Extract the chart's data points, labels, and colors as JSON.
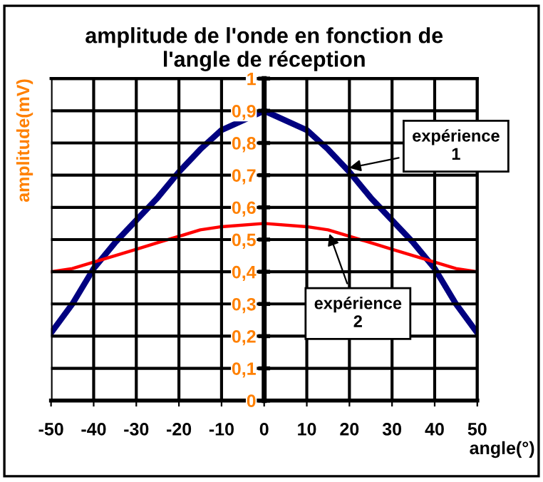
{
  "chart_data": {
    "type": "line",
    "title": "amplitude de l'onde en fonction de\nl'angle de réception",
    "xlabel": "angle(°)",
    "ylabel": "amplitude(mV)",
    "x": [
      -50,
      -45,
      -40,
      -35,
      -30,
      -25,
      -20,
      -15,
      -10,
      0,
      10,
      15,
      20,
      25,
      30,
      35,
      40,
      45,
      50
    ],
    "series": [
      {
        "color": "#000080",
        "values": [
          0.21,
          0.3,
          0.41,
          0.49,
          0.56,
          0.63,
          0.71,
          0.78,
          0.84,
          0.9,
          0.84,
          0.78,
          0.71,
          0.63,
          0.56,
          0.49,
          0.41,
          0.3,
          0.21
        ]
      },
      {
        "color": "#ff0000",
        "values": [
          0.4,
          0.41,
          0.43,
          0.45,
          0.47,
          0.49,
          0.51,
          0.53,
          0.54,
          0.55,
          0.54,
          0.53,
          0.51,
          0.49,
          0.47,
          0.45,
          0.43,
          0.41,
          0.4
        ]
      }
    ],
    "annotations": [
      {
        "text": "expérience\n1",
        "x": 19,
        "y": 0.72
      },
      {
        "text": "expérience\n2",
        "x": 15,
        "y": 0.53
      }
    ],
    "xlim": [
      -50,
      50
    ],
    "xticks": [
      -50,
      -40,
      -30,
      -20,
      -10,
      0,
      10,
      20,
      30,
      40,
      50
    ],
    "ylim": [
      0,
      1
    ],
    "yticks": [
      {
        "value": 0,
        "label": "0"
      },
      {
        "value": 0.1,
        "label": "0,1"
      },
      {
        "value": 0.2,
        "label": "0,2"
      },
      {
        "value": 0.3,
        "label": "0,3"
      },
      {
        "value": 0.4,
        "label": "0,4"
      },
      {
        "value": 0.5,
        "label": "0,5"
      },
      {
        "value": 0.6,
        "label": "0,6"
      },
      {
        "value": 0.7,
        "label": "0,7"
      },
      {
        "value": 0.8,
        "label": "0,8"
      },
      {
        "value": 0.9,
        "label": "0,9"
      },
      {
        "value": 1,
        "label": "1"
      }
    ],
    "grid": true,
    "marker": "none",
    "line_style": "solid"
  }
}
